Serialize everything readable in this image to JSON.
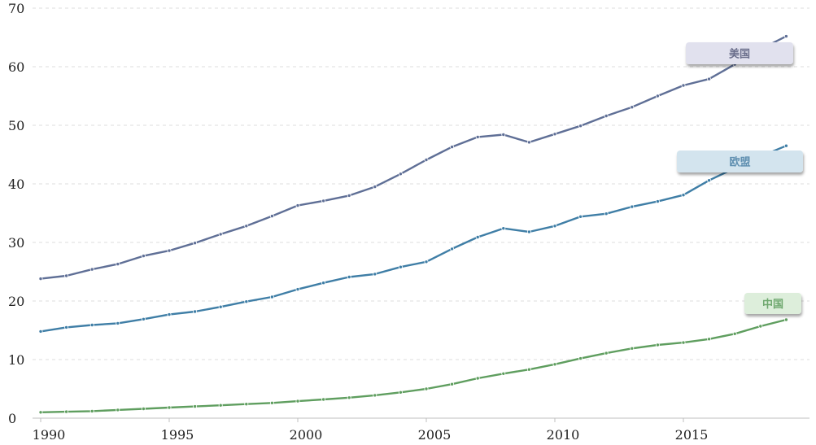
{
  "chart_data": {
    "type": "line",
    "title": "",
    "xlabel": "",
    "ylabel": "",
    "xlim": [
      1989.5,
      2020
    ],
    "ylim": [
      0,
      70
    ],
    "grid": true,
    "x_ticks": [
      "1990",
      "1995",
      "2000",
      "2005",
      "2010",
      "2015"
    ],
    "y_ticks": [
      "0",
      "10",
      "20",
      "30",
      "40",
      "50",
      "60",
      "70"
    ],
    "x": [
      1990,
      1991,
      1992,
      1993,
      1994,
      1995,
      1996,
      1997,
      1998,
      1999,
      2000,
      2001,
      2002,
      2003,
      2004,
      2005,
      2006,
      2007,
      2008,
      2009,
      2010,
      2011,
      2012,
      2013,
      2014,
      2015,
      2016,
      2017,
      2018,
      2019
    ],
    "series": [
      {
        "name": "美国",
        "color": "#5f6f96",
        "label_bg": "#e1e1ee",
        "label_fg": "#6b6f8c",
        "values": [
          23.8,
          24.3,
          25.4,
          26.3,
          27.7,
          28.6,
          29.9,
          31.4,
          32.8,
          34.5,
          36.3,
          37.1,
          38.0,
          39.5,
          41.7,
          44.1,
          46.3,
          48.0,
          48.4,
          47.1,
          48.5,
          49.9,
          51.6,
          53.1,
          55.0,
          56.8,
          57.9,
          60.4,
          63.0,
          65.2
        ]
      },
      {
        "name": "欧盟",
        "color": "#3f7ea6",
        "label_bg": "#d3e4ee",
        "label_fg": "#5f8fb0",
        "values": [
          14.8,
          15.5,
          15.9,
          16.2,
          16.9,
          17.7,
          18.2,
          19.0,
          19.9,
          20.7,
          22.0,
          23.1,
          24.1,
          24.6,
          25.8,
          26.7,
          28.9,
          30.9,
          32.4,
          31.8,
          32.8,
          34.4,
          34.9,
          36.1,
          37.0,
          38.1,
          40.6,
          42.7,
          44.7,
          46.5
        ]
      },
      {
        "name": "中国",
        "color": "#5f9e5f",
        "label_bg": "#ddeedb",
        "label_fg": "#6fa86f",
        "values": [
          1.0,
          1.1,
          1.2,
          1.4,
          1.6,
          1.8,
          2.0,
          2.2,
          2.4,
          2.6,
          2.9,
          3.2,
          3.5,
          3.9,
          4.4,
          5.0,
          5.8,
          6.8,
          7.6,
          8.3,
          9.2,
          10.2,
          11.1,
          11.9,
          12.5,
          12.9,
          13.5,
          14.4,
          15.7,
          16.8
        ]
      }
    ]
  }
}
